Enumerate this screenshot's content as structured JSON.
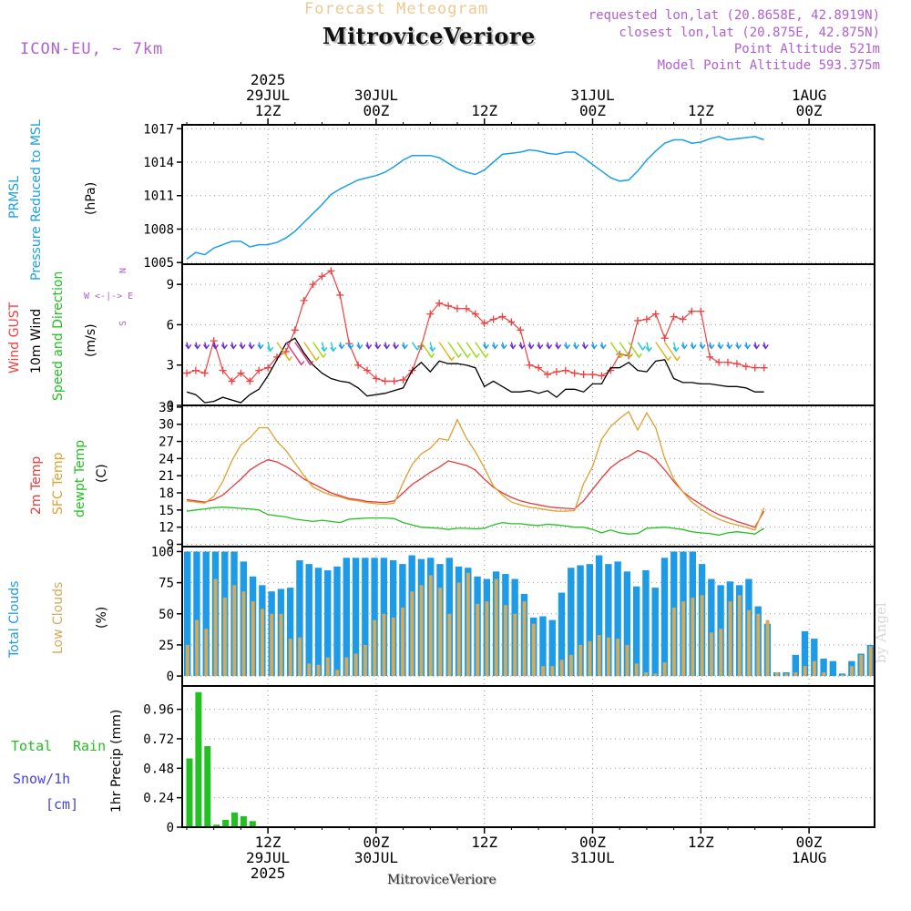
{
  "header": {
    "title": "Forecast Meteogram",
    "location": "MitroviceVeriore",
    "model": "ICON-EU, ~ 7km",
    "requested": "requested lon,lat (20.8658E, 42.8919N)",
    "closest": "closest lon,lat (20.875E, 42.875N)",
    "point_alt": "Point Altitude 521m",
    "model_alt": "Model Point Altitude 593.375m",
    "footer": "MitroviceVeriore",
    "credit": "by Angel"
  },
  "time_axis": {
    "hours_total": 64,
    "year": "2025",
    "top_ticks": [
      {
        "h": 9,
        "lines": [
          "2025",
          "29JUL",
          "12Z"
        ]
      },
      {
        "h": 21,
        "lines": [
          "30JUL",
          "00Z"
        ]
      },
      {
        "h": 33,
        "lines": [
          "12Z"
        ]
      },
      {
        "h": 45,
        "lines": [
          "31JUL",
          "00Z"
        ]
      },
      {
        "h": 57,
        "lines": [
          "12Z"
        ]
      },
      {
        "h": 69,
        "lines": [
          "1AUG",
          "00Z"
        ]
      }
    ],
    "bottom_ticks": [
      {
        "h": 9,
        "lines": [
          "12Z",
          "29JUL",
          "2025"
        ]
      },
      {
        "h": 21,
        "lines": [
          "00Z",
          "30JUL"
        ]
      },
      {
        "h": 33,
        "lines": [
          "12Z"
        ]
      },
      {
        "h": 45,
        "lines": [
          "00Z",
          "31JUL"
        ]
      },
      {
        "h": 57,
        "lines": [
          "12Z"
        ]
      },
      {
        "h": 69,
        "lines": [
          "00Z",
          "1AUG"
        ]
      }
    ]
  },
  "panels": {
    "pressure": {
      "labels": [
        "PRMSL",
        "Pressure Reduced to MSL"
      ],
      "unit": "(hPa)",
      "ticks": [
        "1005",
        "1008",
        "1011",
        "1014",
        "1017"
      ]
    },
    "wind": {
      "labels": [
        "Wind GUST",
        "10m Wind",
        "Speed and Direction"
      ],
      "unit": "(m/s)",
      "ticks": [
        "0",
        "3",
        "6",
        "9"
      ],
      "compass": [
        "N",
        "W <-|-> E",
        "S"
      ]
    },
    "temp": {
      "labels": [
        "2m Temp",
        "SFC Temp",
        "dewpt Temp"
      ],
      "unit": "(C)",
      "ticks": [
        "9",
        "12",
        "15",
        "18",
        "21",
        "24",
        "27",
        "30",
        "33"
      ]
    },
    "clouds": {
      "labels": [
        "Total Clouds",
        "Low Clouds"
      ],
      "unit": "(%)",
      "ticks": [
        "0",
        "25",
        "50",
        "75",
        "100"
      ]
    },
    "precip": {
      "labels": [
        "Total",
        "Rain",
        "Snow/1h",
        "[cm]"
      ],
      "unit": "1hr Precip (mm)",
      "ticks": [
        "0",
        "0.24",
        "0.48",
        "0.72",
        "0.96"
      ]
    }
  },
  "colors": {
    "pressure": "#1ba0e0",
    "gust": "#f04040",
    "wind": "#000000",
    "t2m": "#e83a3a",
    "sfc": "#e0a030",
    "dew": "#22c022",
    "total_cloud": "#1e9be6",
    "low_cloud": "#d2aa5a",
    "rain": "#22c022",
    "purple": "#b060d0",
    "title_orange": "#f0c890"
  },
  "chart_data": [
    {
      "type": "line",
      "name": "PRMSL",
      "xlabel": "hours from first step (1 h steps)",
      "ylabel": "Pressure Reduced to MSL (hPa)",
      "ylim": [
        1005,
        1017
      ],
      "series": [
        {
          "name": "PRMSL",
          "x": [
            0,
            1,
            2,
            3,
            4,
            5,
            6,
            7,
            8,
            9,
            10,
            11,
            12,
            13,
            14,
            15,
            16,
            17,
            18,
            19,
            20,
            21,
            22,
            23,
            24,
            25,
            26,
            27,
            28,
            29,
            30,
            31,
            32,
            33,
            34,
            35,
            36,
            37,
            38,
            39,
            40,
            41,
            42,
            43,
            44,
            45,
            46,
            47,
            48,
            49,
            50,
            51,
            52,
            53,
            54,
            55,
            56,
            57,
            58,
            59,
            60,
            61,
            62,
            63,
            64
          ],
          "values": [
            1005.3,
            1005.9,
            1005.7,
            1006.3,
            1006.6,
            1006.9,
            1006.9,
            1006.4,
            1006.6,
            1006.6,
            1006.8,
            1007.2,
            1007.8,
            1008.6,
            1009.4,
            1010.2,
            1011.1,
            1011.6,
            1012.0,
            1012.4,
            1012.6,
            1012.8,
            1013.1,
            1013.6,
            1014.2,
            1014.6,
            1014.6,
            1014.6,
            1014.4,
            1013.9,
            1013.4,
            1013.1,
            1012.9,
            1013.3,
            1014.0,
            1014.7,
            1014.8,
            1014.9,
            1015.1,
            1015.0,
            1014.8,
            1014.7,
            1014.9,
            1014.9,
            1014.4,
            1013.8,
            1013.2,
            1012.6,
            1012.3,
            1012.4,
            1013.2,
            1014.2,
            1015.0,
            1015.7,
            1016.0,
            1016.0,
            1015.7,
            1015.8,
            1016.1,
            1016.3,
            1016.0,
            1016.1,
            1016.2,
            1016.3,
            1016.0
          ]
        }
      ]
    },
    {
      "type": "line",
      "name": "Wind",
      "ylabel": "(m/s)",
      "ylim": [
        0,
        10
      ],
      "series": [
        {
          "name": "Wind GUST",
          "values": [
            2.4,
            2.6,
            2.4,
            4.8,
            2.6,
            1.8,
            2.4,
            1.8,
            2.6,
            2.8,
            3.6,
            4.0,
            5.6,
            7.8,
            9.0,
            9.6,
            10.0,
            8.2,
            4.6,
            3.0,
            2.6,
            2.0,
            1.8,
            1.8,
            1.9,
            2.6,
            4.4,
            6.8,
            7.6,
            7.4,
            7.2,
            7.2,
            6.8,
            6.1,
            6.4,
            6.6,
            6.2,
            5.6,
            3.0,
            2.8,
            2.3,
            2.5,
            2.6,
            2.4,
            2.3,
            2.3,
            2.2,
            2.6,
            3.8,
            3.7,
            6.3,
            6.4,
            6.8,
            5.0,
            6.6,
            6.4,
            7.0,
            7.0,
            3.6,
            3.2,
            3.2,
            3.1,
            2.9,
            2.8,
            2.8
          ]
        },
        {
          "name": "10m Wind",
          "values": [
            1.0,
            0.8,
            0.2,
            0.3,
            0.6,
            0.4,
            0.2,
            0.8,
            1.2,
            2.2,
            3.4,
            4.6,
            5.0,
            3.9,
            3.0,
            2.4,
            2.0,
            1.8,
            1.7,
            1.3,
            0.7,
            0.8,
            0.9,
            1.1,
            1.3,
            2.6,
            3.2,
            2.5,
            3.3,
            3.1,
            3.1,
            3.0,
            2.8,
            1.4,
            1.8,
            1.4,
            1.0,
            1.0,
            1.1,
            0.9,
            1.1,
            0.6,
            1.2,
            1.2,
            1.0,
            1.6,
            1.6,
            2.8,
            2.8,
            3.2,
            2.6,
            2.5,
            3.3,
            3.4,
            2.0,
            1.7,
            1.7,
            1.6,
            1.6,
            1.5,
            1.4,
            1.4,
            1.3,
            1.0,
            1.0
          ]
        }
      ]
    },
    {
      "type": "line",
      "name": "Temperature",
      "ylabel": "(C)",
      "ylim": [
        9,
        33
      ],
      "series": [
        {
          "name": "2m Temp",
          "values": [
            16.8,
            16.6,
            16.4,
            16.8,
            17.6,
            19.0,
            20.4,
            22.0,
            23.0,
            23.8,
            23.4,
            22.6,
            21.6,
            20.4,
            19.6,
            18.8,
            18.0,
            17.5,
            17.0,
            16.8,
            16.5,
            16.4,
            16.3,
            16.6,
            18.0,
            19.5,
            20.5,
            21.6,
            22.5,
            23.6,
            23.2,
            22.8,
            22.0,
            20.4,
            19.0,
            18.0,
            17.2,
            16.6,
            16.2,
            15.9,
            15.6,
            15.4,
            15.3,
            15.2,
            16.6,
            18.6,
            20.6,
            22.4,
            23.6,
            24.4,
            25.4,
            24.9,
            23.8,
            22.0,
            20.0,
            18.2,
            17.0,
            16.0,
            15.0,
            14.2,
            13.6,
            13.0,
            12.5,
            12.0,
            14.8
          ]
        },
        {
          "name": "SFC Temp",
          "values": [
            16.6,
            16.4,
            16.2,
            17.4,
            20.0,
            23.6,
            26.4,
            27.6,
            29.4,
            29.4,
            27.0,
            25.4,
            23.2,
            21.0,
            19.0,
            18.2,
            17.6,
            17.3,
            16.8,
            16.6,
            16.3,
            16.1,
            16.0,
            16.2,
            19.8,
            23.0,
            24.8,
            25.8,
            27.5,
            27.2,
            30.8,
            27.6,
            25.2,
            22.4,
            19.2,
            17.6,
            16.4,
            15.9,
            15.5,
            15.3,
            15.0,
            14.8,
            14.8,
            14.9,
            19.6,
            22.6,
            27.4,
            29.6,
            31.0,
            32.2,
            29.0,
            32.0,
            29.4,
            24.0,
            20.4,
            18.2,
            16.4,
            15.2,
            14.2,
            13.4,
            12.8,
            12.4,
            12.0,
            11.5,
            15.4
          ]
        },
        {
          "name": "dewpt Temp",
          "values": [
            14.8,
            15.0,
            15.2,
            15.4,
            15.5,
            15.4,
            15.3,
            15.2,
            15.0,
            14.2,
            14.0,
            13.8,
            13.4,
            13.2,
            13.0,
            13.2,
            13.0,
            12.8,
            13.4,
            13.5,
            13.6,
            13.6,
            13.6,
            13.5,
            12.8,
            12.4,
            12.0,
            11.9,
            11.8,
            11.6,
            11.8,
            11.8,
            11.7,
            11.8,
            12.4,
            12.8,
            12.6,
            12.6,
            12.4,
            12.3,
            12.5,
            12.4,
            12.2,
            12.0,
            12.0,
            11.6,
            11.0,
            11.5,
            11.0,
            10.8,
            10.9,
            11.8,
            11.9,
            12.0,
            11.8,
            11.6,
            11.2,
            11.0,
            10.9,
            10.6,
            11.0,
            11.2,
            11.0,
            10.8,
            11.8
          ]
        }
      ]
    },
    {
      "type": "bar",
      "name": "Clouds",
      "ylabel": "(%)",
      "ylim": [
        0,
        100
      ],
      "series": [
        {
          "name": "Total Clouds",
          "values": [
            100,
            100,
            100,
            100,
            100,
            100,
            92,
            80,
            73,
            68,
            70,
            71,
            93,
            90,
            87,
            85,
            88,
            95,
            95,
            95,
            95,
            95,
            93,
            90,
            97,
            94,
            95,
            90,
            95,
            88,
            87,
            80,
            78,
            84,
            82,
            78,
            66,
            47,
            48,
            45,
            67,
            87,
            89,
            90,
            97,
            90,
            92,
            84,
            72,
            85,
            71,
            95,
            100,
            100,
            100,
            90,
            78,
            73,
            76,
            73,
            78,
            56,
            42,
            3,
            3,
            17,
            36,
            30,
            14,
            12,
            2,
            12,
            18,
            25
          ]
        },
        {
          "name": "Low Clouds",
          "values": [
            25,
            45,
            38,
            78,
            63,
            73,
            68,
            60,
            54,
            50,
            50,
            30,
            31,
            10,
            9,
            15,
            5,
            15,
            18,
            25,
            45,
            50,
            47,
            55,
            68,
            73,
            81,
            71,
            50,
            75,
            83,
            58,
            60,
            78,
            57,
            50,
            60,
            42,
            8,
            8,
            13,
            17,
            25,
            28,
            33,
            31,
            30,
            25,
            10,
            3,
            2,
            11,
            55,
            60,
            63,
            65,
            35,
            38,
            60,
            65,
            53,
            50,
            45,
            3,
            2,
            3,
            8,
            12,
            3,
            0,
            1,
            8,
            17,
            24
          ]
        }
      ]
    },
    {
      "type": "bar",
      "name": "Precipitation",
      "ylabel": "1hr Precip (mm)",
      "ylim": [
        0,
        1.15
      ],
      "series": [
        {
          "name": "Total Rain",
          "values": [
            0.56,
            1.1,
            0.66,
            0.02,
            0.06,
            0.12,
            0.09,
            0.05,
            0,
            0,
            0,
            0,
            0,
            0,
            0,
            0,
            0,
            0,
            0,
            0,
            0,
            0,
            0,
            0,
            0,
            0,
            0,
            0,
            0,
            0,
            0,
            0,
            0,
            0,
            0,
            0,
            0,
            0,
            0,
            0,
            0,
            0,
            0,
            0,
            0,
            0,
            0,
            0,
            0,
            0,
            0,
            0,
            0,
            0,
            0,
            0,
            0,
            0,
            0,
            0,
            0,
            0,
            0,
            0
          ]
        }
      ]
    }
  ]
}
